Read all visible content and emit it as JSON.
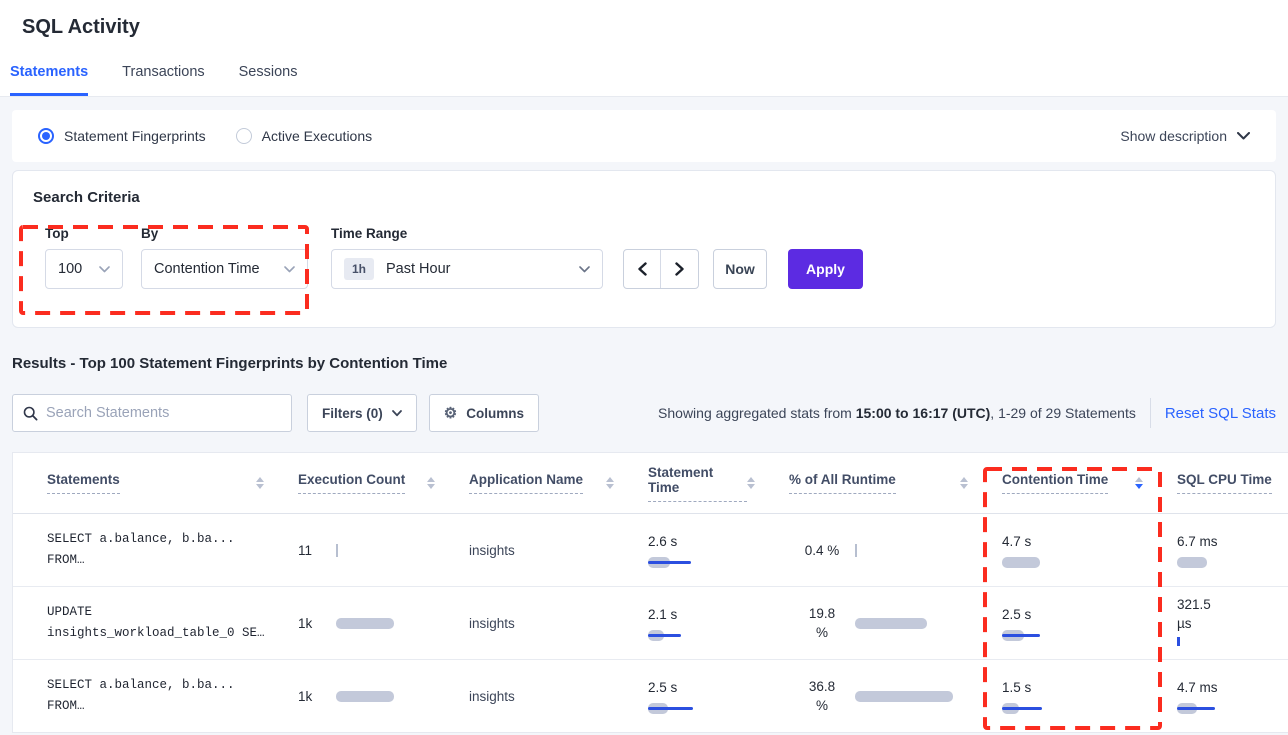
{
  "colors": {
    "accent": "#2a63ff",
    "apply_purple": "#5c2be2",
    "bar_gray": "#c3c9da",
    "bar_blue": "#2b4fe0",
    "highlight_red": "#fb2c1f"
  },
  "page": {
    "title": "SQL Activity"
  },
  "tabs": [
    {
      "label": "Statements",
      "active": true
    },
    {
      "label": "Transactions",
      "active": false
    },
    {
      "label": "Sessions",
      "active": false
    }
  ],
  "view_toggle": {
    "options": [
      {
        "label": "Statement Fingerprints",
        "selected": true
      },
      {
        "label": "Active Executions",
        "selected": false
      }
    ],
    "show_description_label": "Show description"
  },
  "search_criteria": {
    "title": "Search Criteria",
    "top_label": "Top",
    "top_value": "100",
    "by_label": "By",
    "by_value": "Contention Time",
    "time_range_label": "Time Range",
    "time_range_badge": "1h",
    "time_range_value": "Past Hour",
    "now_label": "Now",
    "apply_label": "Apply"
  },
  "results": {
    "title": "Results - Top 100 Statement Fingerprints by Contention Time",
    "search_placeholder": "Search Statements",
    "filters_label": "Filters (0)",
    "columns_label": "Columns",
    "stats_prefix": "Showing aggregated stats from ",
    "stats_bold": "15:00 to 16:17 (UTC)",
    "stats_suffix": ", 1-29 of 29 Statements",
    "reset_label": "Reset SQL Stats"
  },
  "table": {
    "headers": [
      {
        "label": "Statements",
        "sort": "both"
      },
      {
        "label": "Execution Count",
        "sort": "both"
      },
      {
        "label": "Application Name",
        "sort": "both"
      },
      {
        "label": "Statement Time",
        "sort": "both"
      },
      {
        "label": "% of All Runtime",
        "sort": "both"
      },
      {
        "label": "Contention Time",
        "sort": "desc"
      },
      {
        "label": "SQL CPU Time",
        "sort": "none"
      }
    ],
    "rows": [
      {
        "statement_lines": [
          "SELECT a.balance, b.ba...",
          "FROM…"
        ],
        "execution": {
          "value": "11",
          "tick": "gray"
        },
        "app": "insights",
        "statement_time": {
          "value": "2.6 s",
          "gray": 22,
          "blue": 43
        },
        "runtime": {
          "lines": [
            "0.4 %"
          ],
          "tick": "gray"
        },
        "contention": {
          "value": "4.7 s",
          "gray": 38
        },
        "cpu": {
          "lines": [
            "6.7 ms"
          ],
          "gray": 30
        }
      },
      {
        "statement_lines": [
          "UPDATE",
          "insights_workload_table_0 SE…"
        ],
        "execution": {
          "value": "1k",
          "gray": 58
        },
        "app": "insights",
        "statement_time": {
          "value": "2.1 s",
          "gray": 16,
          "blue": 33
        },
        "runtime": {
          "lines": [
            "19.8",
            "%"
          ],
          "gray": 72
        },
        "contention": {
          "value": "2.5 s",
          "gray": 22,
          "blue": 38
        },
        "cpu": {
          "lines": [
            "321.5",
            "µs"
          ],
          "tick": "blue"
        }
      },
      {
        "statement_lines": [
          "SELECT a.balance, b.ba...",
          "FROM…"
        ],
        "execution": {
          "value": "1k",
          "gray": 58
        },
        "app": "insights",
        "statement_time": {
          "value": "2.5 s",
          "gray": 20,
          "blue": 45
        },
        "runtime": {
          "lines": [
            "36.8",
            "%"
          ],
          "gray": 98
        },
        "contention": {
          "value": "1.5 s",
          "gray": 17,
          "blue": 40
        },
        "cpu": {
          "lines": [
            "4.7 ms"
          ],
          "gray": 20,
          "blue": 38
        }
      }
    ]
  }
}
